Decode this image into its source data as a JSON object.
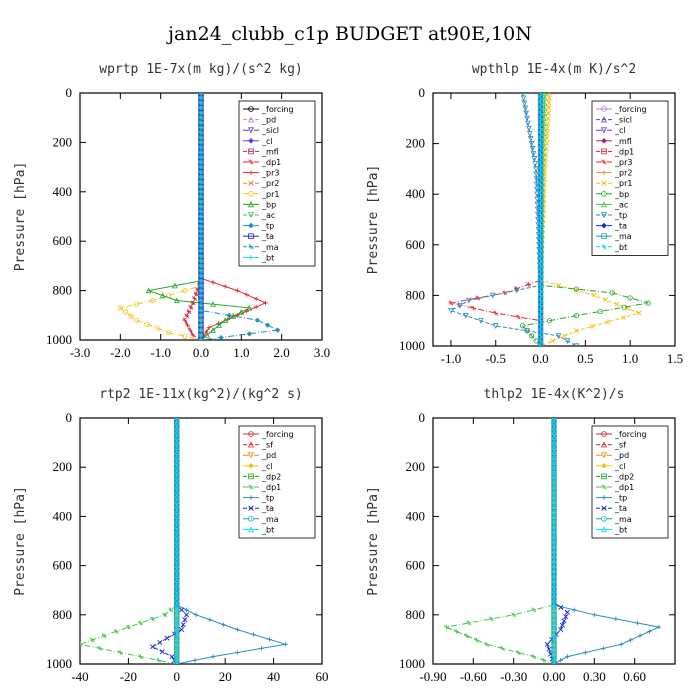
{
  "figure_title": "jan24_clubb_c1p  BUDGET at90E,10N",
  "chart_data": [
    {
      "type": "line",
      "title": "wprtp  1E-7x(m kg)/(s^2 kg)",
      "xlabel": "",
      "ylabel": "Pressure [hPa]",
      "xlim": [
        -3.0,
        3.0
      ],
      "ylim": [
        1000,
        0
      ],
      "xticks": [
        "-3.0",
        "-2.0",
        "-1.0",
        "0.0",
        "1.0",
        "2.0",
        "3.0"
      ],
      "xtick_values": [
        -3,
        -2,
        -1,
        0,
        1,
        2,
        3
      ],
      "yticks": [
        0,
        200,
        400,
        600,
        800,
        1000
      ],
      "legend_position": "top-right",
      "series": [
        {
          "name": "_forcing",
          "color": "#000000",
          "points": [
            [
              0,
              0
            ],
            [
              0,
              500
            ],
            [
              0,
              1000
            ]
          ]
        },
        {
          "name": "_pd",
          "color": "#b58acb",
          "points": [
            [
              0,
              0
            ],
            [
              0,
              1000
            ]
          ]
        },
        {
          "name": "_sicl",
          "color": "#6a38d8",
          "points": [
            [
              0,
              0
            ],
            [
              0,
              1000
            ]
          ]
        },
        {
          "name": "_cl",
          "color": "#6a38d8",
          "points": [
            [
              0,
              0
            ],
            [
              0,
              1000
            ]
          ]
        },
        {
          "name": "_mfl",
          "color": "#b2226a",
          "points": [
            [
              0,
              0
            ],
            [
              0,
              1000
            ]
          ]
        },
        {
          "name": "_dp1",
          "color": "#d8233a",
          "points": [
            [
              0,
              0
            ],
            [
              0,
              760
            ],
            [
              -0.2,
              850
            ],
            [
              -0.4,
              920
            ],
            [
              -0.2,
              980
            ],
            [
              0,
              1000
            ]
          ]
        },
        {
          "name": "_pr3",
          "color": "#e8272f",
          "points": [
            [
              0,
              0
            ],
            [
              0,
              750
            ],
            [
              0.9,
              800
            ],
            [
              1.6,
              850
            ],
            [
              0.9,
              900
            ],
            [
              0.2,
              950
            ],
            [
              0,
              1000
            ]
          ]
        },
        {
          "name": "_pr2",
          "color": "#f08a2a",
          "points": [
            [
              0,
              0
            ],
            [
              0,
              1000
            ]
          ]
        },
        {
          "name": "_pr1",
          "color": "#f0c419",
          "points": [
            [
              0,
              0
            ],
            [
              0,
              780
            ],
            [
              -1.2,
              840
            ],
            [
              -2.0,
              870
            ],
            [
              -1.6,
              920
            ],
            [
              -0.8,
              970
            ],
            [
              0,
              1000
            ]
          ]
        },
        {
          "name": "_bp",
          "color": "#22a52a",
          "points": [
            [
              0,
              0
            ],
            [
              0,
              760
            ],
            [
              -1.3,
              800
            ],
            [
              -0.6,
              840
            ],
            [
              1.2,
              870
            ],
            [
              0.6,
              920
            ],
            [
              0,
              1000
            ]
          ]
        },
        {
          "name": "_ac",
          "color": "#4cc44c",
          "points": [
            [
              0,
              0
            ],
            [
              0,
              1000
            ]
          ]
        },
        {
          "name": "_tp",
          "color": "#2a8ac2",
          "points": [
            [
              0,
              0
            ],
            [
              0,
              880
            ],
            [
              1.4,
              920
            ],
            [
              1.9,
              960
            ],
            [
              0.5,
              990
            ],
            [
              0,
              1000
            ]
          ]
        },
        {
          "name": "_ta",
          "color": "#1a2ad8",
          "points": [
            [
              0,
              0
            ],
            [
              0,
              1000
            ]
          ]
        },
        {
          "name": "_ma",
          "color": "#1aa0c2",
          "points": [
            [
              0,
              0
            ],
            [
              0,
              1000
            ]
          ]
        },
        {
          "name": "_bt",
          "color": "#1ad4f0",
          "points": [
            [
              0,
              0
            ],
            [
              0,
              1000
            ]
          ]
        }
      ]
    },
    {
      "type": "line",
      "title": "wpthlp  1E-4x(m K)/s^2",
      "xlabel": "",
      "ylabel": "Pressure [hPa]",
      "xlim": [
        -1.2,
        1.5
      ],
      "ylim": [
        1000,
        0
      ],
      "xticks": [
        "-1.0",
        "-0.5",
        "0.0",
        "0.5",
        "1.0",
        "1.5"
      ],
      "xtick_values": [
        -1.0,
        -0.5,
        0.0,
        0.5,
        1.0,
        1.5
      ],
      "yticks": [
        0,
        200,
        400,
        600,
        800,
        1000
      ],
      "legend_position": "top-right",
      "series": [
        {
          "name": "_forcing",
          "color": "#b58acb",
          "points": [
            [
              0,
              0
            ],
            [
              0,
              1000
            ]
          ]
        },
        {
          "name": "_sicl",
          "color": "#6a38d8",
          "points": [
            [
              0,
              0
            ],
            [
              0,
              1000
            ]
          ]
        },
        {
          "name": "_cl",
          "color": "#6a38d8",
          "points": [
            [
              0,
              0
            ],
            [
              0,
              1000
            ]
          ]
        },
        {
          "name": "_mfl",
          "color": "#b2226a",
          "points": [
            [
              0,
              0
            ],
            [
              0,
              1000
            ]
          ]
        },
        {
          "name": "_dp1",
          "color": "#d8233a",
          "points": [
            [
              0,
              0
            ],
            [
              0,
              1000
            ]
          ]
        },
        {
          "name": "_pr3",
          "color": "#e8272f",
          "points": [
            [
              0,
              0
            ],
            [
              0,
              740
            ],
            [
              -0.4,
              790
            ],
            [
              -1.0,
              830
            ],
            [
              -0.5,
              870
            ],
            [
              0,
              900
            ],
            [
              0,
              1000
            ]
          ]
        },
        {
          "name": "_pr2",
          "color": "#f08a2a",
          "points": [
            [
              0,
              0
            ],
            [
              0,
              1000
            ]
          ]
        },
        {
          "name": "_pr1",
          "color": "#f0c419",
          "points": [
            [
              0.1,
              0
            ],
            [
              0.05,
              300
            ],
            [
              0,
              740
            ],
            [
              0.6,
              800
            ],
            [
              1.1,
              870
            ],
            [
              0.4,
              940
            ],
            [
              0,
              1000
            ]
          ]
        },
        {
          "name": "_bp",
          "color": "#22a52a",
          "points": [
            [
              0,
              0
            ],
            [
              0,
              760
            ],
            [
              0.8,
              790
            ],
            [
              1.2,
              830
            ],
            [
              0.4,
              880
            ],
            [
              -0.2,
              920
            ],
            [
              0,
              1000
            ]
          ]
        },
        {
          "name": "_ac",
          "color": "#4cc44c",
          "points": [
            [
              0.05,
              0
            ],
            [
              0.02,
              300
            ],
            [
              0,
              1000
            ]
          ]
        },
        {
          "name": "_tp",
          "color": "#2a8ac2",
          "points": [
            [
              -0.2,
              0
            ],
            [
              -0.05,
              300
            ],
            [
              0,
              760
            ],
            [
              -0.8,
              820
            ],
            [
              -1.0,
              860
            ],
            [
              -0.5,
              920
            ],
            [
              0.2,
              960
            ],
            [
              0.4,
              1000
            ]
          ]
        },
        {
          "name": "_ta",
          "color": "#1a2ad8",
          "points": [
            [
              0,
              0
            ],
            [
              0,
              1000
            ]
          ]
        },
        {
          "name": "_ma",
          "color": "#1aa0c2",
          "points": [
            [
              0,
              0
            ],
            [
              0,
              1000
            ]
          ]
        },
        {
          "name": "_bt",
          "color": "#1ad4f0",
          "points": [
            [
              0,
              0
            ],
            [
              0,
              1000
            ]
          ]
        }
      ]
    },
    {
      "type": "line",
      "title": "rtp2  1E-11x(kg^2)/(kg^2 s)",
      "xlabel": "",
      "ylabel": "Pressure [hPa]",
      "xlim": [
        -40,
        60
      ],
      "ylim": [
        1000,
        0
      ],
      "xticks": [
        "-40",
        "-20",
        "0",
        "20",
        "40",
        "60"
      ],
      "xtick_values": [
        -40,
        -20,
        0,
        20,
        40,
        60
      ],
      "yticks": [
        0,
        200,
        400,
        600,
        800,
        1000
      ],
      "legend_position": "top-right",
      "series": [
        {
          "name": "_forcing",
          "color": "#d8233a",
          "points": [
            [
              0,
              0
            ],
            [
              0,
              1000
            ]
          ]
        },
        {
          "name": "_sf",
          "color": "#e8272f",
          "points": [
            [
              0,
              0
            ],
            [
              0,
              1000
            ]
          ]
        },
        {
          "name": "_pd",
          "color": "#f08a2a",
          "points": [
            [
              0,
              0
            ],
            [
              0,
              1000
            ]
          ]
        },
        {
          "name": "_cl",
          "color": "#f0c419",
          "points": [
            [
              0,
              0
            ],
            [
              0,
              1000
            ]
          ]
        },
        {
          "name": "_dp2",
          "color": "#22a52a",
          "points": [
            [
              0,
              0
            ],
            [
              0,
              1000
            ]
          ]
        },
        {
          "name": "_dp1",
          "color": "#4cc44c",
          "points": [
            [
              0,
              0
            ],
            [
              0,
              760
            ],
            [
              -5,
              800
            ],
            [
              -20,
              850
            ],
            [
              -40,
              920
            ],
            [
              -15,
              970
            ],
            [
              0,
              1000
            ]
          ]
        },
        {
          "name": "_tp",
          "color": "#2a8ac2",
          "points": [
            [
              0,
              0
            ],
            [
              0,
              760
            ],
            [
              8,
              800
            ],
            [
              25,
              860
            ],
            [
              45,
              920
            ],
            [
              15,
              970
            ],
            [
              0,
              1000
            ]
          ]
        },
        {
          "name": "_ta",
          "color": "#1a2ad8",
          "points": [
            [
              0,
              0
            ],
            [
              0,
              760
            ],
            [
              4,
              800
            ],
            [
              2,
              860
            ],
            [
              -10,
              930
            ],
            [
              -2,
              970
            ],
            [
              0,
              1000
            ]
          ]
        },
        {
          "name": "_ma",
          "color": "#1aa0c2",
          "points": [
            [
              0,
              0
            ],
            [
              0,
              1000
            ]
          ]
        },
        {
          "name": "_bt",
          "color": "#1ad4f0",
          "points": [
            [
              0,
              0
            ],
            [
              0,
              1000
            ]
          ]
        }
      ]
    },
    {
      "type": "line",
      "title": "thlp2  1E-4x(K^2)/s",
      "xlabel": "",
      "ylabel": "Pressure [hPa]",
      "xlim": [
        -0.9,
        0.9
      ],
      "ylim": [
        1000,
        0
      ],
      "xticks": [
        "-0.90",
        "-0.60",
        "-0.30",
        "0.00",
        "0.30",
        "0.60"
      ],
      "xtick_values": [
        -0.9,
        -0.6,
        -0.3,
        0.0,
        0.3,
        0.6
      ],
      "yticks": [
        0,
        200,
        400,
        600,
        800,
        1000
      ],
      "legend_position": "top-right",
      "series": [
        {
          "name": "_forcing",
          "color": "#d8233a",
          "points": [
            [
              0,
              0
            ],
            [
              0,
              1000
            ]
          ]
        },
        {
          "name": "_sf",
          "color": "#e8272f",
          "points": [
            [
              0,
              0
            ],
            [
              0,
              1000
            ]
          ]
        },
        {
          "name": "_pd",
          "color": "#f08a2a",
          "points": [
            [
              0,
              0
            ],
            [
              0,
              1000
            ]
          ]
        },
        {
          "name": "_cl",
          "color": "#f0c419",
          "points": [
            [
              0,
              0
            ],
            [
              0,
              1000
            ]
          ]
        },
        {
          "name": "_dp2",
          "color": "#22a52a",
          "points": [
            [
              0,
              0
            ],
            [
              0,
              1000
            ]
          ]
        },
        {
          "name": "_dp1",
          "color": "#4cc44c",
          "points": [
            [
              0,
              0
            ],
            [
              0,
              760
            ],
            [
              -0.3,
              800
            ],
            [
              -0.8,
              850
            ],
            [
              -0.5,
              920
            ],
            [
              -0.15,
              970
            ],
            [
              0,
              1000
            ]
          ]
        },
        {
          "name": "_tp",
          "color": "#2a8ac2",
          "points": [
            [
              0,
              0
            ],
            [
              0,
              760
            ],
            [
              0.3,
              800
            ],
            [
              0.78,
              850
            ],
            [
              0.5,
              920
            ],
            [
              0.1,
              970
            ],
            [
              0,
              1000
            ]
          ]
        },
        {
          "name": "_ta",
          "color": "#1a2ad8",
          "points": [
            [
              0,
              0
            ],
            [
              0,
              750
            ],
            [
              0.1,
              790
            ],
            [
              0.05,
              860
            ],
            [
              -0.05,
              920
            ],
            [
              0,
              1000
            ]
          ]
        },
        {
          "name": "_ma",
          "color": "#1aa0c2",
          "points": [
            [
              0,
              0
            ],
            [
              0,
              1000
            ]
          ]
        },
        {
          "name": "_bt",
          "color": "#1ad4f0",
          "points": [
            [
              0,
              0
            ],
            [
              0,
              1000
            ]
          ]
        }
      ]
    }
  ]
}
